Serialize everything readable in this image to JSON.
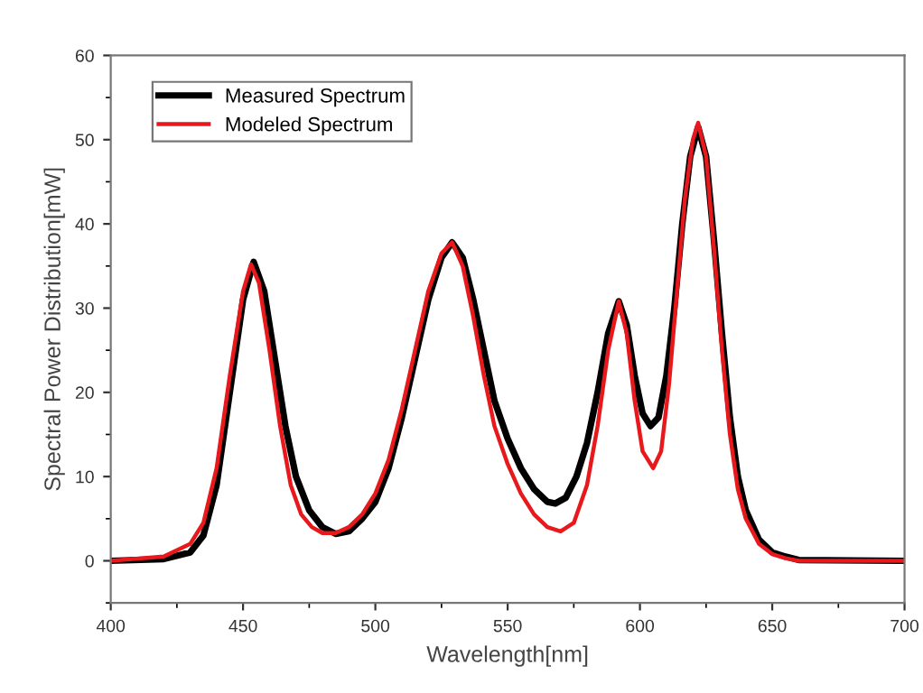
{
  "chart_data": {
    "type": "line",
    "xlabel": "Wavelength[nm]",
    "ylabel": "Spectral Power Distribution[mW]",
    "xlim": [
      400,
      700
    ],
    "xticks": [
      400,
      450,
      500,
      550,
      600,
      650,
      700
    ],
    "ylim": [
      -5,
      60
    ],
    "yticks": [
      0,
      10,
      20,
      30,
      40,
      50,
      60
    ],
    "grid": false,
    "legend": "top left",
    "marker": "none",
    "line_style": "solid",
    "series": [
      {
        "name": "Measured Spectrum",
        "color": "#000000",
        "x": [
          400,
          420,
          430,
          435,
          440,
          445,
          450,
          454,
          458,
          462,
          466,
          470,
          475,
          480,
          485,
          490,
          495,
          500,
          505,
          510,
          515,
          520,
          525,
          529,
          533,
          537,
          541,
          545,
          550,
          555,
          560,
          565,
          568,
          572,
          576,
          580,
          584,
          588,
          592,
          595,
          598,
          601,
          604,
          607,
          610,
          613,
          616,
          619,
          622,
          625,
          628,
          631,
          634,
          637,
          640,
          645,
          650,
          655,
          660,
          700
        ],
        "values": [
          0,
          0.2,
          1,
          3,
          9,
          20,
          31,
          35.5,
          32,
          24,
          16,
          10,
          6,
          4,
          3.2,
          3.5,
          5,
          7,
          11,
          17,
          24,
          31,
          36,
          37.8,
          36,
          31,
          25,
          19,
          14.5,
          11,
          8.5,
          7,
          6.8,
          7.5,
          10,
          14,
          20,
          27,
          30.8,
          28,
          22,
          17.5,
          16,
          17,
          22,
          30,
          40,
          48,
          51.5,
          48,
          38,
          27,
          17,
          10,
          6,
          2.5,
          1,
          0.5,
          0.1,
          0
        ]
      },
      {
        "name": "Modeled Spectrum",
        "color": "#e8191c",
        "x": [
          400,
          420,
          430,
          435,
          440,
          445,
          450,
          453,
          456,
          460,
          464,
          468,
          472,
          476,
          480,
          485,
          490,
          495,
          500,
          505,
          510,
          515,
          520,
          525,
          529,
          533,
          537,
          541,
          545,
          550,
          555,
          560,
          565,
          570,
          575,
          580,
          584,
          588,
          592,
          595,
          598,
          601,
          605,
          608,
          611,
          614,
          617,
          620,
          622,
          625,
          628,
          631,
          634,
          637,
          640,
          645,
          650,
          655,
          660,
          700
        ],
        "values": [
          0,
          0.5,
          2,
          4.5,
          11,
          22,
          32,
          35.2,
          33,
          25,
          16,
          9,
          5.5,
          4,
          3.3,
          3.3,
          4,
          5.5,
          8,
          12,
          18,
          25,
          32,
          36.5,
          37.8,
          35,
          29,
          22,
          16,
          11.5,
          8,
          5.5,
          4,
          3.5,
          4.5,
          9,
          16,
          25,
          30.8,
          27,
          19,
          13,
          11,
          13,
          21,
          32,
          43,
          50,
          52,
          48,
          37,
          25,
          15,
          8.5,
          5,
          2,
          0.8,
          0.3,
          0,
          0
        ]
      }
    ]
  }
}
